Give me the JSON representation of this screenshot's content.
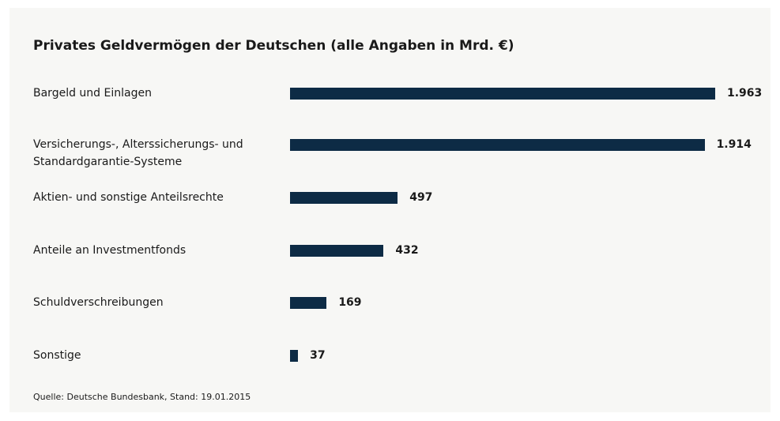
{
  "chart_data": {
    "type": "bar",
    "orientation": "horizontal",
    "title": "Privates Geldvermögen der Deutschen (alle Angaben in Mrd. €)",
    "categories": [
      "Bargeld und Einlagen",
      "Versicherungs-, Alterssicherungs- und Standardgarantie-Systeme",
      "Aktien- und sonstige Anteilsrechte",
      "Anteile an Investmentfonds",
      "Schuldverschreibungen",
      "Sonstige"
    ],
    "values": [
      1963,
      1914,
      497,
      432,
      169,
      37
    ],
    "value_labels": [
      "1.963",
      "1.914",
      "497",
      "432",
      "169",
      "37"
    ],
    "color": "#0d2b45",
    "source": "Quelle: Deutsche Bundesbank, Stand: 19.01.2015"
  }
}
